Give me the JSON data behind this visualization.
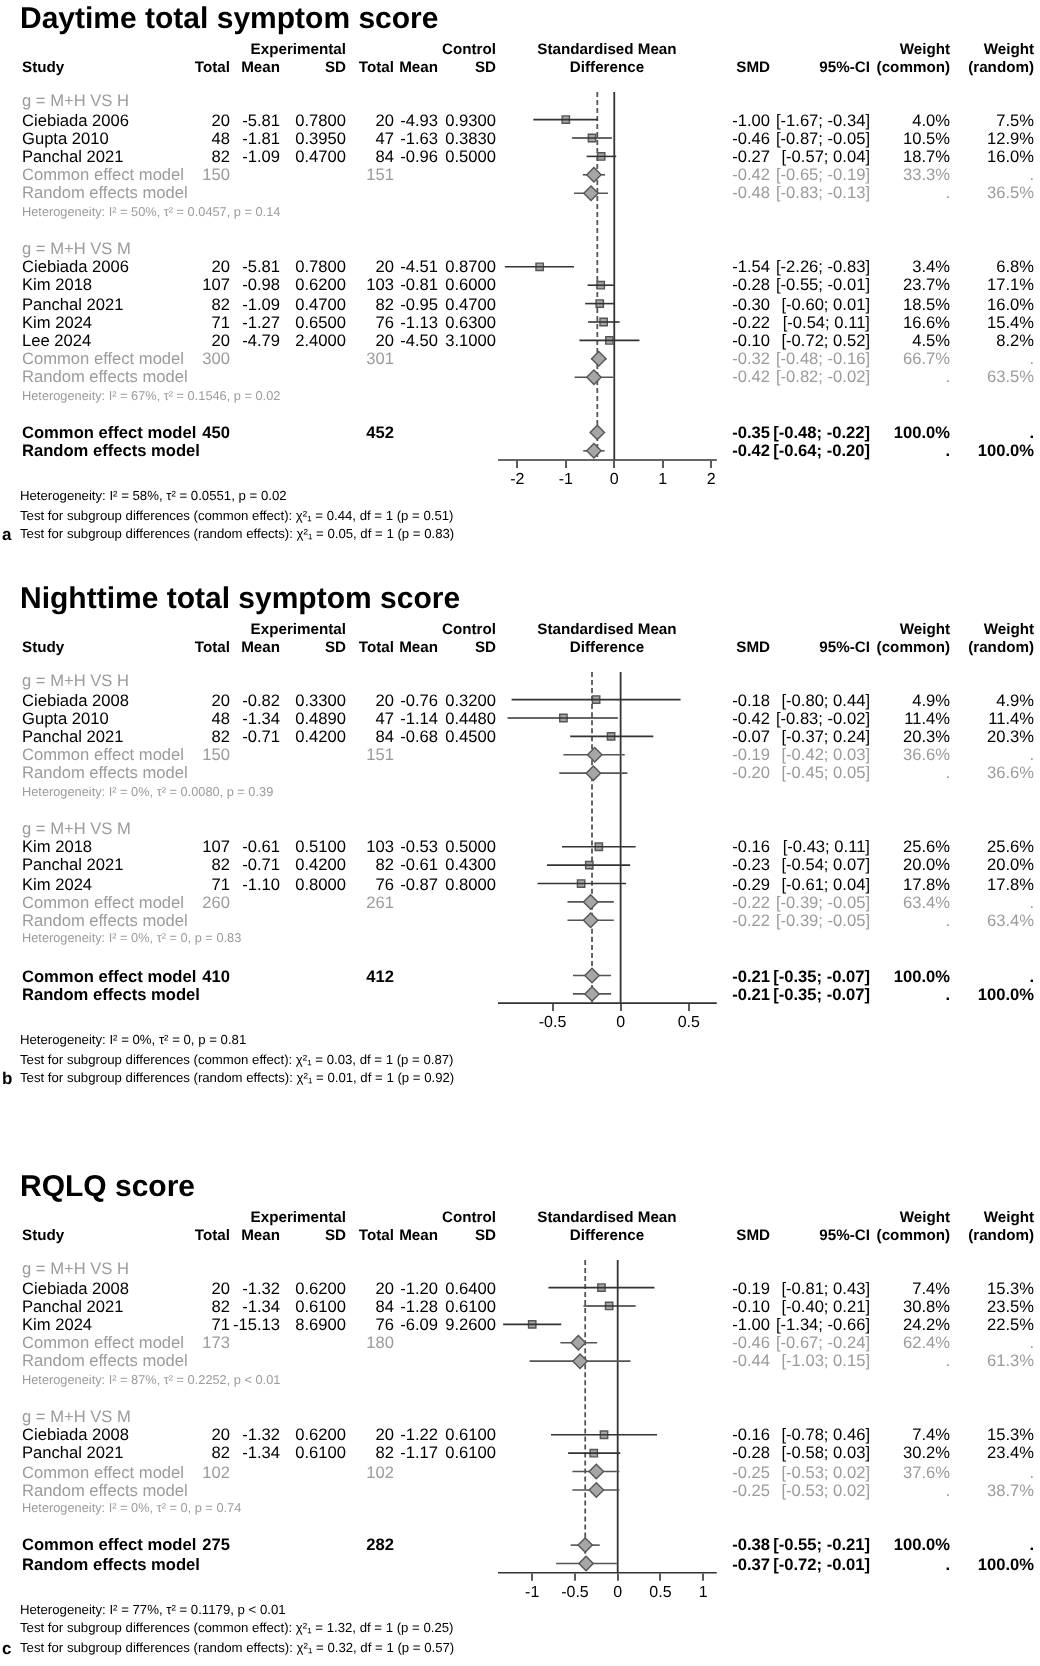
{
  "chart_data": [
    {
      "type": "scatter",
      "orientation": "horizontal",
      "xlabel": "Standardised Mean Difference",
      "categories": [
        null,
        null,
        null,
        null,
        null,
        null,
        null,
        null,
        null,
        null,
        null,
        null,
        null,
        null,
        null,
        null,
        null,
        null,
        null,
        null
      ],
      "series": [
        {
          "type": "scatter",
          "marker": "square",
          "color": "#a6a6a6",
          "values": [
            null,
            -1,
            -0.46,
            -0.27,
            null,
            null,
            null,
            null,
            null,
            -1.54,
            -0.28,
            -0.3,
            -0.22,
            -0.1,
            null,
            null,
            null,
            null,
            null,
            null
          ],
          "errors": [
            null,
            [
              -1.67,
              -0.34
            ],
            [
              -0.87,
              -0.05
            ],
            [
              -0.57,
              0.04
            ],
            null,
            null,
            null,
            null,
            null,
            [
              -2.26,
              -0.83
            ],
            [
              -0.55,
              -0.01
            ],
            [
              -0.6,
              0.01
            ],
            [
              -0.54,
              0.11
            ],
            [
              -0.72,
              0.52
            ],
            null,
            null,
            null,
            null,
            null,
            null
          ]
        },
        {
          "type": "scatter",
          "marker": "diamond",
          "color": "#a6a6a6",
          "values": [
            null,
            null,
            null,
            null,
            -0.42,
            -0.48,
            null,
            null,
            null,
            null,
            null,
            null,
            null,
            null,
            -0.32,
            -0.42,
            null,
            null,
            null,
            null
          ],
          "errors": [
            null,
            null,
            null,
            null,
            [
              -0.65,
              -0.19
            ],
            [
              -0.83,
              -0.13
            ],
            null,
            null,
            null,
            null,
            null,
            null,
            null,
            null,
            [
              -0.48,
              -0.16
            ],
            [
              -0.82,
              -0.02
            ],
            null,
            null,
            null,
            null
          ]
        },
        {
          "type": "scatter",
          "marker": "diamond",
          "color": "#a6a6a6",
          "values": [
            null,
            null,
            null,
            null,
            null,
            null,
            null,
            null,
            null,
            null,
            null,
            null,
            null,
            null,
            null,
            null,
            null,
            null,
            -0.35,
            -0.42
          ],
          "errors": [
            null,
            null,
            null,
            null,
            null,
            null,
            null,
            null,
            null,
            null,
            null,
            null,
            null,
            null,
            null,
            null,
            null,
            null,
            [
              -0.48,
              -0.22
            ],
            [
              -0.64,
              -0.2
            ]
          ]
        }
      ],
      "xlim": [
        -2.4,
        2.1
      ],
      "xticks": [
        -2,
        -1,
        0,
        1,
        2
      ],
      "ref_lines": [
        {
          "axis": "x",
          "value": 0,
          "color": "#333333",
          "line_style": "solid"
        },
        {
          "axis": "x",
          "value": -0.35,
          "color": "#555555",
          "line_style": "dashed"
        }
      ]
    },
    {
      "type": "other",
      "title": "Daytime total symptom score",
      "categories": [
        "Study",
        "Total",
        "Mean",
        "SD",
        "Total",
        "Mean",
        "SD",
        "SMD",
        "95%-CI",
        "Weight (common)",
        "Weight (random)"
      ],
      "annotations": [
        "Experimental",
        "Control",
        "Heterogeneity: I² = 58%, τ² = 0.0551, p = 0.02",
        "Test for subgroup differences (common effect): χ²₁ = 0.44, df = 1 (p = 0.51)",
        "Test for subgroup differences (random effects): χ²₁ = 0.05, df = 1 (p = 0.83)",
        "a"
      ],
      "cell_labels": [
        [
          "g = M+H VS H",
          null,
          null,
          null,
          null,
          null,
          null,
          null,
          null,
          null,
          null
        ],
        [
          "Ciebiada 2006",
          "20",
          "-5.81",
          "0.7800",
          "20",
          "-4.93",
          "0.9300",
          "-1.00",
          "[-1.67; -0.34]",
          "4.0%",
          "7.5%"
        ],
        [
          "Gupta 2010",
          "48",
          "-1.81",
          "0.3950",
          "47",
          "-1.63",
          "0.3830",
          "-0.46",
          "[-0.87; -0.05]",
          "10.5%",
          "12.9%"
        ],
        [
          "Panchal 2021",
          "82",
          "-1.09",
          "0.4700",
          "84",
          "-0.96",
          "0.5000",
          "-0.27",
          "[-0.57; 0.04]",
          "18.7%",
          "16.0%"
        ],
        [
          "Common effect model",
          "150",
          null,
          null,
          "151",
          null,
          null,
          "-0.42",
          "[-0.65; -0.19]",
          "33.3%",
          "."
        ],
        [
          "Random effects model",
          null,
          null,
          null,
          null,
          null,
          null,
          "-0.48",
          "[-0.83; -0.13]",
          ".",
          "36.5%"
        ],
        [
          "Heterogeneity: I² = 50%, τ² = 0.0457, p = 0.14",
          null,
          null,
          null,
          null,
          null,
          null,
          null,
          null,
          null,
          null
        ],
        [
          null,
          null,
          null,
          null,
          null,
          null,
          null,
          null,
          null,
          null,
          null
        ],
        [
          "g = M+H VS M",
          null,
          null,
          null,
          null,
          null,
          null,
          null,
          null,
          null,
          null
        ],
        [
          "Ciebiada 2006",
          "20",
          "-5.81",
          "0.7800",
          "20",
          "-4.51",
          "0.8700",
          "-1.54",
          "[-2.26; -0.83]",
          "3.4%",
          "6.8%"
        ],
        [
          "Kim 2018",
          "107",
          "-0.98",
          "0.6200",
          "103",
          "-0.81",
          "0.6000",
          "-0.28",
          "[-0.55; -0.01]",
          "23.7%",
          "17.1%"
        ],
        [
          "Panchal 2021",
          "82",
          "-1.09",
          "0.4700",
          "82",
          "-0.95",
          "0.4700",
          "-0.30",
          "[-0.60; 0.01]",
          "18.5%",
          "16.0%"
        ],
        [
          "Kim 2024",
          "71",
          "-1.27",
          "0.6500",
          "76",
          "-1.13",
          "0.6300",
          "-0.22",
          "[-0.54; 0.11]",
          "16.6%",
          "15.4%"
        ],
        [
          "Lee 2024",
          "20",
          "-4.79",
          "2.4000",
          "20",
          "-4.50",
          "3.1000",
          "-0.10",
          "[-0.72; 0.52]",
          "4.5%",
          "8.2%"
        ],
        [
          "Common effect model",
          "300",
          null,
          null,
          "301",
          null,
          null,
          "-0.32",
          "[-0.48; -0.16]",
          "66.7%",
          "."
        ],
        [
          "Random effects model",
          null,
          null,
          null,
          null,
          null,
          null,
          "-0.42",
          "[-0.82; -0.02]",
          ".",
          "63.5%"
        ],
        [
          "Heterogeneity: I² = 67%, τ² = 0.1546, p = 0.02",
          null,
          null,
          null,
          null,
          null,
          null,
          null,
          null,
          null,
          null
        ],
        [
          null,
          null,
          null,
          null,
          null,
          null,
          null,
          null,
          null,
          null,
          null
        ],
        [
          "Common effect model",
          "450",
          null,
          null,
          "452",
          null,
          null,
          "-0.35",
          "[-0.48; -0.22]",
          "100.0%",
          "."
        ],
        [
          "Random effects model",
          null,
          null,
          null,
          null,
          null,
          null,
          "-0.42",
          "[-0.64; -0.20]",
          ".",
          "100.0%"
        ]
      ]
    },
    {
      "type": "scatter",
      "orientation": "horizontal",
      "xlabel": "Standardised Mean Difference",
      "categories": [
        null,
        null,
        null,
        null,
        null,
        null,
        null,
        null,
        null,
        null,
        null,
        null,
        null,
        null,
        null,
        null,
        null,
        null
      ],
      "series": [
        {
          "type": "scatter",
          "marker": "square",
          "color": "#a6a6a6",
          "values": [
            null,
            -0.18,
            -0.42,
            -0.07,
            null,
            null,
            null,
            null,
            null,
            -0.16,
            -0.23,
            -0.29,
            null,
            null,
            null,
            null,
            null,
            null
          ],
          "errors": [
            null,
            [
              -0.8,
              0.44
            ],
            [
              -0.83,
              -0.02
            ],
            [
              -0.37,
              0.24
            ],
            null,
            null,
            null,
            null,
            null,
            [
              -0.43,
              0.11
            ],
            [
              -0.54,
              0.07
            ],
            [
              -0.61,
              0.04
            ],
            null,
            null,
            null,
            null,
            null,
            null
          ]
        },
        {
          "type": "scatter",
          "marker": "diamond",
          "color": "#a6a6a6",
          "values": [
            null,
            null,
            null,
            null,
            -0.19,
            -0.2,
            null,
            null,
            null,
            null,
            null,
            null,
            -0.22,
            -0.22,
            null,
            null,
            null,
            null
          ],
          "errors": [
            null,
            null,
            null,
            null,
            [
              -0.42,
              0.03
            ],
            [
              -0.45,
              0.05
            ],
            null,
            null,
            null,
            null,
            null,
            null,
            [
              -0.39,
              -0.05
            ],
            [
              -0.39,
              -0.05
            ],
            null,
            null,
            null,
            null
          ]
        },
        {
          "type": "scatter",
          "marker": "diamond",
          "color": "#a6a6a6",
          "values": [
            null,
            null,
            null,
            null,
            null,
            null,
            null,
            null,
            null,
            null,
            null,
            null,
            null,
            null,
            null,
            null,
            -0.21,
            -0.21
          ],
          "errors": [
            null,
            null,
            null,
            null,
            null,
            null,
            null,
            null,
            null,
            null,
            null,
            null,
            null,
            null,
            null,
            null,
            [
              -0.35,
              -0.07
            ],
            [
              -0.35,
              -0.07
            ]
          ]
        }
      ],
      "xlim": [
        -0.9,
        0.7
      ],
      "xticks": [
        -0.5,
        0,
        0.5
      ],
      "ref_lines": [
        {
          "axis": "x",
          "value": 0,
          "color": "#333333",
          "line_style": "solid"
        },
        {
          "axis": "x",
          "value": -0.21,
          "color": "#555555",
          "line_style": "dashed"
        }
      ]
    },
    {
      "type": "other",
      "title": "Nighttime total symptom score",
      "categories": [
        "Study",
        "Total",
        "Mean",
        "SD",
        "Total",
        "Mean",
        "SD",
        "SMD",
        "95%-CI",
        "Weight (common)",
        "Weight (random)"
      ],
      "annotations": [
        "Experimental",
        "Control",
        "Heterogeneity: I² = 0%, τ² = 0, p = 0.81",
        "Test for subgroup differences (common effect): χ²₁ = 0.03, df = 1 (p = 0.87)",
        "Test for subgroup differences (random effects): χ²₁ = 0.01, df = 1 (p = 0.92)",
        "b"
      ],
      "cell_labels": [
        [
          "g = M+H VS H",
          null,
          null,
          null,
          null,
          null,
          null,
          null,
          null,
          null,
          null
        ],
        [
          "Ciebiada 2008",
          "20",
          "-0.82",
          "0.3300",
          "20",
          "-0.76",
          "0.3200",
          "-0.18",
          "[-0.80; 0.44]",
          "4.9%",
          "4.9%"
        ],
        [
          "Gupta 2010",
          "48",
          "-1.34",
          "0.4890",
          "47",
          "-1.14",
          "0.4480",
          "-0.42",
          "[-0.83; -0.02]",
          "11.4%",
          "11.4%"
        ],
        [
          "Panchal 2021",
          "82",
          "-0.71",
          "0.4200",
          "84",
          "-0.68",
          "0.4500",
          "-0.07",
          "[-0.37; 0.24]",
          "20.3%",
          "20.3%"
        ],
        [
          "Common effect model",
          "150",
          null,
          null,
          "151",
          null,
          null,
          "-0.19",
          "[-0.42; 0.03]",
          "36.6%",
          "."
        ],
        [
          "Random effects model",
          null,
          null,
          null,
          null,
          null,
          null,
          "-0.20",
          "[-0.45; 0.05]",
          ".",
          "36.6%"
        ],
        [
          "Heterogeneity: I² = 0%, τ² = 0.0080, p = 0.39",
          null,
          null,
          null,
          null,
          null,
          null,
          null,
          null,
          null,
          null
        ],
        [
          null,
          null,
          null,
          null,
          null,
          null,
          null,
          null,
          null,
          null,
          null
        ],
        [
          "g = M+H VS M",
          null,
          null,
          null,
          null,
          null,
          null,
          null,
          null,
          null,
          null
        ],
        [
          "Kim 2018",
          "107",
          "-0.61",
          "0.5100",
          "103",
          "-0.53",
          "0.5000",
          "-0.16",
          "[-0.43; 0.11]",
          "25.6%",
          "25.6%"
        ],
        [
          "Panchal 2021",
          "82",
          "-0.71",
          "0.4200",
          "82",
          "-0.61",
          "0.4300",
          "-0.23",
          "[-0.54; 0.07]",
          "20.0%",
          "20.0%"
        ],
        [
          "Kim 2024",
          "71",
          "-1.10",
          "0.8000",
          "76",
          "-0.87",
          "0.8000",
          "-0.29",
          "[-0.61; 0.04]",
          "17.8%",
          "17.8%"
        ],
        [
          "Common effect model",
          "260",
          null,
          null,
          "261",
          null,
          null,
          "-0.22",
          "[-0.39; -0.05]",
          "63.4%",
          "."
        ],
        [
          "Random effects model",
          null,
          null,
          null,
          null,
          null,
          null,
          "-0.22",
          "[-0.39; -0.05]",
          ".",
          "63.4%"
        ],
        [
          "Heterogeneity: I² = 0%, τ² = 0, p = 0.83",
          null,
          null,
          null,
          null,
          null,
          null,
          null,
          null,
          null,
          null
        ],
        [
          null,
          null,
          null,
          null,
          null,
          null,
          null,
          null,
          null,
          null,
          null
        ],
        [
          "Common effect model",
          "410",
          null,
          null,
          "412",
          null,
          null,
          "-0.21",
          "[-0.35; -0.07]",
          "100.0%",
          "."
        ],
        [
          "Random effects model",
          null,
          null,
          null,
          null,
          null,
          null,
          "-0.21",
          "[-0.35; -0.07]",
          ".",
          "100.0%"
        ]
      ]
    },
    {
      "type": "scatter",
      "orientation": "horizontal",
      "xlabel": "Standardised Mean Difference",
      "categories": [
        null,
        null,
        null,
        null,
        null,
        null,
        null,
        null,
        null,
        null,
        null,
        null,
        null,
        null,
        null,
        null,
        null
      ],
      "series": [
        {
          "type": "scatter",
          "marker": "square",
          "color": "#a6a6a6",
          "values": [
            null,
            -0.19,
            -0.1,
            -1,
            null,
            null,
            null,
            null,
            null,
            -0.16,
            -0.28,
            null,
            null,
            null,
            null,
            null,
            null
          ],
          "errors": [
            null,
            [
              -0.81,
              0.43
            ],
            [
              -0.4,
              0.21
            ],
            [
              -1.34,
              -0.66
            ],
            null,
            null,
            null,
            null,
            null,
            [
              -0.78,
              0.46
            ],
            [
              -0.58,
              0.03
            ],
            null,
            null,
            null,
            null,
            null,
            null
          ]
        },
        {
          "type": "scatter",
          "marker": "diamond",
          "color": "#a6a6a6",
          "values": [
            null,
            null,
            null,
            null,
            -0.46,
            -0.44,
            null,
            null,
            null,
            null,
            null,
            -0.25,
            -0.25,
            null,
            null,
            null,
            null
          ],
          "errors": [
            null,
            null,
            null,
            null,
            [
              -0.67,
              -0.24
            ],
            [
              -1.03,
              0.15
            ],
            null,
            null,
            null,
            null,
            null,
            [
              -0.53,
              0.02
            ],
            [
              -0.53,
              0.02
            ],
            null,
            null,
            null,
            null
          ]
        },
        {
          "type": "scatter",
          "marker": "diamond",
          "color": "#a6a6a6",
          "values": [
            null,
            null,
            null,
            null,
            null,
            null,
            null,
            null,
            null,
            null,
            null,
            null,
            null,
            null,
            null,
            -0.38,
            -0.37
          ],
          "errors": [
            null,
            null,
            null,
            null,
            null,
            null,
            null,
            null,
            null,
            null,
            null,
            null,
            null,
            null,
            null,
            [
              -0.55,
              -0.21
            ],
            [
              -0.72,
              -0.01
            ]
          ]
        }
      ],
      "xlim": [
        -1.4,
        1.15
      ],
      "xticks": [
        -1,
        -0.5,
        0,
        0.5,
        1
      ],
      "ref_lines": [
        {
          "axis": "x",
          "value": 0,
          "color": "#333333",
          "line_style": "solid"
        },
        {
          "axis": "x",
          "value": -0.38,
          "color": "#555555",
          "line_style": "dashed"
        }
      ]
    },
    {
      "type": "other",
      "title": "RQLQ score",
      "categories": [
        "Study",
        "Total",
        "Mean",
        "SD",
        "Total",
        "Mean",
        "SD",
        "SMD",
        "95%-CI",
        "Weight (common)",
        "Weight (random)"
      ],
      "annotations": [
        "Experimental",
        "Control",
        "Heterogeneity: I² = 77%, τ² = 0.1179, p < 0.01",
        "Test for subgroup differences (common effect): χ²₁ = 1.32, df = 1 (p = 0.25)",
        "Test for subgroup differences (random effects): χ²₁ = 0.32, df = 1 (p = 0.57)",
        "c"
      ],
      "cell_labels": [
        [
          "g = M+H VS H",
          null,
          null,
          null,
          null,
          null,
          null,
          null,
          null,
          null,
          null
        ],
        [
          "Ciebiada 2008",
          "20",
          "-1.32",
          "0.6200",
          "20",
          "-1.20",
          "0.6400",
          "-0.19",
          "[-0.81; 0.43]",
          "7.4%",
          "15.3%"
        ],
        [
          "Panchal 2021",
          "82",
          "-1.34",
          "0.6100",
          "84",
          "-1.28",
          "0.6100",
          "-0.10",
          "[-0.40; 0.21]",
          "30.8%",
          "23.5%"
        ],
        [
          "Kim 2024",
          "71",
          "-15.13",
          "8.6900",
          "76",
          "-6.09",
          "9.2600",
          "-1.00",
          "[-1.34; -0.66]",
          "24.2%",
          "22.5%"
        ],
        [
          "Common effect model",
          "173",
          null,
          null,
          "180",
          null,
          null,
          "-0.46",
          "[-0.67; -0.24]",
          "62.4%",
          "."
        ],
        [
          "Random effects model",
          null,
          null,
          null,
          null,
          null,
          null,
          "-0.44",
          "[-1.03; 0.15]",
          ".",
          "61.3%"
        ],
        [
          "Heterogeneity: I² = 87%, τ² = 0.2252, p < 0.01",
          null,
          null,
          null,
          null,
          null,
          null,
          null,
          null,
          null,
          null
        ],
        [
          null,
          null,
          null,
          null,
          null,
          null,
          null,
          null,
          null,
          null,
          null
        ],
        [
          "g = M+H VS M",
          null,
          null,
          null,
          null,
          null,
          null,
          null,
          null,
          null,
          null
        ],
        [
          "Ciebiada 2008",
          "20",
          "-1.32",
          "0.6200",
          "20",
          "-1.22",
          "0.6100",
          "-0.16",
          "[-0.78; 0.46]",
          "7.4%",
          "15.3%"
        ],
        [
          "Panchal 2021",
          "82",
          "-1.34",
          "0.6100",
          "82",
          "-1.17",
          "0.6100",
          "-0.28",
          "[-0.58; 0.03]",
          "30.2%",
          "23.4%"
        ],
        [
          "Common effect model",
          "102",
          null,
          null,
          "102",
          null,
          null,
          "-0.25",
          "[-0.53; 0.02]",
          "37.6%",
          "."
        ],
        [
          "Random effects model",
          null,
          null,
          null,
          null,
          null,
          null,
          "-0.25",
          "[-0.53; 0.02]",
          ".",
          "38.7%"
        ],
        [
          "Heterogeneity: I² = 0%, τ² = 0, p = 0.74",
          null,
          null,
          null,
          null,
          null,
          null,
          null,
          null,
          null,
          null
        ],
        [
          null,
          null,
          null,
          null,
          null,
          null,
          null,
          null,
          null,
          null,
          null
        ],
        [
          "Common effect model",
          "275",
          null,
          null,
          "282",
          null,
          null,
          "-0.38",
          "[-0.55; -0.21]",
          "100.0%",
          "."
        ],
        [
          "Random effects model",
          null,
          null,
          null,
          null,
          null,
          null,
          "-0.37",
          "[-0.72; -0.01]",
          ".",
          "100.0%"
        ]
      ]
    }
  ]
}
